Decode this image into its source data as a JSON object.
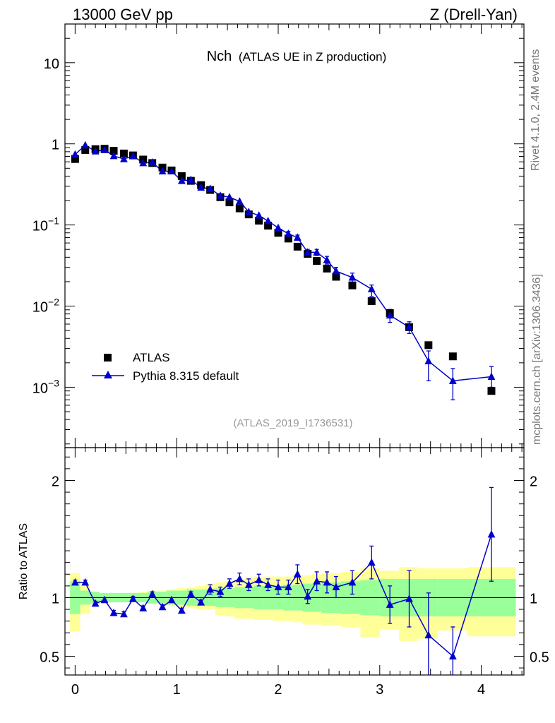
{
  "header": {
    "energy_label": "13000 GeV pp",
    "process_label": "Z (Drell-Yan)"
  },
  "side": {
    "rivet_label": "Rivet 4.1.0,  2.4M events",
    "mcplots_label": "mcplots.cern.ch [arXiv:1306.3436]"
  },
  "colors": {
    "data": "#000000",
    "mc": "#0000cc",
    "band_inner": "#99ff99",
    "band_outer": "#ffff99"
  },
  "chart_data": [
    {
      "type": "scatter",
      "title": "Nch",
      "subtitle": "(ATLAS UE in Z production)",
      "analysis_tag": "(ATLAS_2019_I1736531)",
      "yscale": "log",
      "ylim": [
        0.00018,
        30
      ],
      "xlim": [
        -0.1,
        4.42
      ],
      "y_ticks": [
        {
          "value": 10,
          "label": "10"
        },
        {
          "value": 1,
          "label": "1"
        },
        {
          "value": 0.1,
          "label": "10",
          "exp": "−1"
        },
        {
          "value": 0.01,
          "label": "10",
          "exp": "−2"
        },
        {
          "value": 0.001,
          "label": "10",
          "exp": "−3"
        }
      ],
      "legend_position": "bottom-left",
      "series": [
        {
          "name": "ATLAS",
          "marker": "square",
          "x": [
            0.0,
            0.1,
            0.2,
            0.29,
            0.38,
            0.48,
            0.57,
            0.67,
            0.76,
            0.86,
            0.95,
            1.05,
            1.14,
            1.24,
            1.33,
            1.43,
            1.52,
            1.62,
            1.71,
            1.81,
            1.9,
            2.0,
            2.1,
            2.19,
            2.29,
            2.38,
            2.48,
            2.57,
            2.73,
            2.92,
            3.1,
            3.29,
            3.48,
            3.72,
            4.1
          ],
          "values": [
            0.65,
            0.84,
            0.86,
            0.87,
            0.82,
            0.76,
            0.72,
            0.64,
            0.58,
            0.51,
            0.47,
            0.4,
            0.35,
            0.31,
            0.27,
            0.22,
            0.19,
            0.16,
            0.135,
            0.113,
            0.098,
            0.08,
            0.068,
            0.054,
            0.044,
            0.036,
            0.029,
            0.023,
            0.018,
            0.0115,
            0.0082,
            0.0055,
            0.0033,
            0.0024,
            0.0009
          ]
        },
        {
          "name": "Pythia 8.315 default",
          "marker": "triangle",
          "x": [
            0.0,
            0.1,
            0.2,
            0.29,
            0.38,
            0.48,
            0.57,
            0.67,
            0.76,
            0.86,
            0.95,
            1.05,
            1.14,
            1.24,
            1.33,
            1.43,
            1.52,
            1.62,
            1.71,
            1.81,
            1.9,
            2.0,
            2.1,
            2.19,
            2.29,
            2.38,
            2.48,
            2.57,
            2.73,
            2.92,
            3.1,
            3.29,
            3.48,
            3.72,
            4.1
          ],
          "values": [
            0.74,
            0.96,
            0.81,
            0.84,
            0.71,
            0.65,
            0.71,
            0.58,
            0.59,
            0.46,
            0.46,
            0.35,
            0.36,
            0.29,
            0.28,
            0.23,
            0.22,
            0.195,
            0.145,
            0.131,
            0.112,
            0.092,
            0.078,
            0.07,
            0.046,
            0.046,
            0.037,
            0.027,
            0.0225,
            0.0162,
            0.0077,
            0.0055,
            0.0021,
            0.0012,
            0.00135
          ],
          "err_low": [
            0.01,
            0.01,
            0.01,
            0.01,
            0.01,
            0.01,
            0.01,
            0.01,
            0.01,
            0.01,
            0.01,
            0.01,
            0.01,
            0.01,
            0.008,
            0.008,
            0.008,
            0.008,
            0.007,
            0.007,
            0.006,
            0.005,
            0.005,
            0.005,
            0.004,
            0.004,
            0.004,
            0.003,
            0.003,
            0.003,
            0.0014,
            0.0009,
            0.0009,
            0.0005,
            0.00035
          ],
          "err_high": [
            0.01,
            0.01,
            0.01,
            0.01,
            0.01,
            0.01,
            0.01,
            0.01,
            0.01,
            0.01,
            0.01,
            0.01,
            0.01,
            0.01,
            0.008,
            0.008,
            0.008,
            0.008,
            0.007,
            0.007,
            0.006,
            0.005,
            0.005,
            0.005,
            0.004,
            0.004,
            0.004,
            0.003,
            0.003,
            0.002,
            0.0014,
            0.0009,
            0.0007,
            0.0005,
            0.00045
          ]
        }
      ]
    },
    {
      "type": "scatter",
      "title": "",
      "ylabel": "Ratio to ATLAS",
      "xlim": [
        -0.1,
        4.42
      ],
      "ylim": [
        0.34,
        2.28
      ],
      "reference_line": 1.0,
      "y_ticks": [
        {
          "value": 2,
          "label": "2"
        },
        {
          "value": 1,
          "label": "1"
        },
        {
          "value": 0.5,
          "label": "0.5"
        }
      ],
      "x_ticks": [
        {
          "value": 0,
          "label": "0"
        },
        {
          "value": 1,
          "label": "1"
        },
        {
          "value": 2,
          "label": "2"
        },
        {
          "value": 3,
          "label": "3"
        },
        {
          "value": 4,
          "label": "4"
        }
      ],
      "uncertainty_bands": {
        "edges": [
          -0.05,
          0.05,
          0.15,
          0.24,
          0.33,
          0.43,
          0.52,
          0.62,
          0.71,
          0.81,
          0.9,
          1.0,
          1.1,
          1.19,
          1.29,
          1.38,
          1.48,
          1.57,
          1.67,
          1.76,
          1.86,
          1.95,
          2.05,
          2.14,
          2.24,
          2.33,
          2.43,
          2.52,
          2.62,
          2.81,
          3.0,
          3.19,
          3.38,
          3.57,
          3.86,
          4.34
        ],
        "inner_low": [
          0.86,
          0.94,
          0.95,
          0.96,
          0.96,
          0.96,
          0.96,
          0.96,
          0.95,
          0.95,
          0.94,
          0.94,
          0.93,
          0.93,
          0.93,
          0.92,
          0.92,
          0.91,
          0.91,
          0.9,
          0.9,
          0.9,
          0.89,
          0.89,
          0.88,
          0.88,
          0.87,
          0.87,
          0.86,
          0.85,
          0.84,
          0.84,
          0.84,
          0.84,
          0.84
        ],
        "inner_high": [
          1.14,
          1.06,
          1.05,
          1.04,
          1.04,
          1.04,
          1.04,
          1.04,
          1.05,
          1.05,
          1.06,
          1.06,
          1.07,
          1.07,
          1.07,
          1.08,
          1.08,
          1.09,
          1.09,
          1.1,
          1.1,
          1.1,
          1.11,
          1.11,
          1.12,
          1.12,
          1.13,
          1.13,
          1.14,
          1.15,
          1.16,
          1.16,
          1.16,
          1.16,
          1.16
        ],
        "outer_low": [
          0.71,
          0.86,
          0.96,
          0.98,
          0.98,
          0.98,
          0.97,
          0.97,
          0.96,
          0.94,
          0.93,
          0.92,
          0.91,
          0.9,
          0.9,
          0.85,
          0.84,
          0.82,
          0.82,
          0.81,
          0.81,
          0.8,
          0.8,
          0.79,
          0.77,
          0.77,
          0.76,
          0.76,
          0.75,
          0.66,
          0.73,
          0.63,
          0.65,
          0.72,
          0.67
        ],
        "outer_high": [
          1.21,
          1.1,
          1.04,
          1.03,
          1.02,
          1.02,
          1.04,
          1.05,
          1.06,
          1.06,
          1.07,
          1.08,
          1.09,
          1.1,
          1.12,
          1.13,
          1.14,
          1.16,
          1.17,
          1.18,
          1.18,
          1.18,
          1.18,
          1.19,
          1.19,
          1.2,
          1.21,
          1.21,
          1.22,
          1.25,
          1.23,
          1.26,
          1.25,
          1.25,
          1.26
        ]
      },
      "series": [
        {
          "name": "Pythia 8.315 default",
          "marker": "triangle",
          "x": [
            0.0,
            0.1,
            0.2,
            0.29,
            0.38,
            0.48,
            0.57,
            0.67,
            0.76,
            0.86,
            0.95,
            1.05,
            1.14,
            1.24,
            1.33,
            1.43,
            1.52,
            1.62,
            1.71,
            1.81,
            1.9,
            2.0,
            2.1,
            2.19,
            2.29,
            2.38,
            2.48,
            2.57,
            2.73,
            2.92,
            3.1,
            3.29,
            3.48,
            3.72,
            4.1
          ],
          "values": [
            1.13,
            1.13,
            0.95,
            0.98,
            0.87,
            0.86,
            0.99,
            0.91,
            1.03,
            0.92,
            0.98,
            0.89,
            1.03,
            0.96,
            1.07,
            1.05,
            1.12,
            1.16,
            1.11,
            1.15,
            1.11,
            1.09,
            1.09,
            1.2,
            1.01,
            1.14,
            1.13,
            1.09,
            1.13,
            1.3,
            0.94,
            0.99,
            0.68,
            0.5,
            1.54
          ],
          "err_low": [
            0.02,
            0.02,
            0.02,
            0.02,
            0.02,
            0.02,
            0.02,
            0.02,
            0.02,
            0.02,
            0.02,
            0.02,
            0.02,
            0.02,
            0.04,
            0.04,
            0.04,
            0.05,
            0.05,
            0.05,
            0.05,
            0.06,
            0.06,
            0.08,
            0.06,
            0.08,
            0.09,
            0.09,
            0.1,
            0.14,
            0.16,
            0.24,
            0.36,
            0.5,
            0.4
          ],
          "err_high": [
            0.02,
            0.02,
            0.02,
            0.02,
            0.02,
            0.02,
            0.02,
            0.02,
            0.02,
            0.02,
            0.02,
            0.02,
            0.02,
            0.02,
            0.04,
            0.04,
            0.04,
            0.05,
            0.05,
            0.05,
            0.05,
            0.06,
            0.06,
            0.08,
            0.06,
            0.08,
            0.09,
            0.09,
            0.1,
            0.14,
            0.16,
            0.24,
            0.36,
            0.25,
            0.4
          ]
        }
      ]
    }
  ]
}
